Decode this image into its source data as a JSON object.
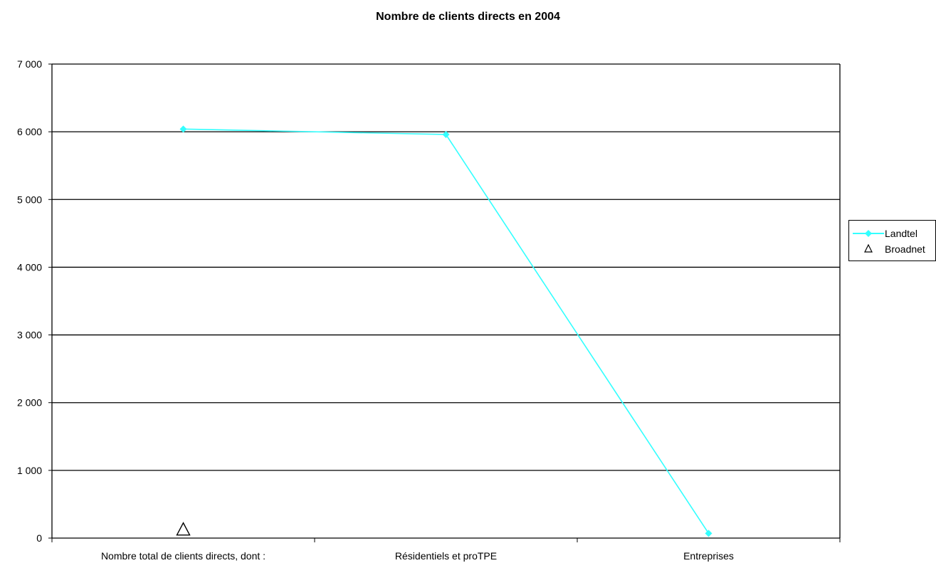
{
  "chart_data": {
    "type": "line",
    "title": "Nombre de clients directs en 2004",
    "categories": [
      "Nombre total de clients directs, dont :",
      "Résidentiels et proTPE",
      "Entreprises"
    ],
    "y_ticks": [
      "0",
      "1 000",
      "2 000",
      "3 000",
      "4 000",
      "5 000",
      "6 000",
      "7 000"
    ],
    "ylim": [
      0,
      7000
    ],
    "grid": true,
    "legend_position": "right",
    "series": [
      {
        "name": "Landtel",
        "values": [
          6040,
          5960,
          70
        ],
        "color": "#33ffff",
        "marker": "diamond",
        "line": true
      },
      {
        "name": "Broadnet",
        "values": [
          130,
          null,
          null
        ],
        "color": "#000000",
        "marker": "triangle-open",
        "line": false
      }
    ]
  }
}
